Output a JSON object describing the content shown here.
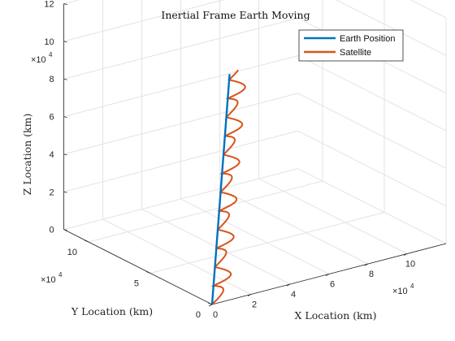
{
  "chart_data": {
    "type": "line",
    "title": "Inertial Frame Earth Moving",
    "xlabel": "X Location (km)",
    "ylabel": "Y Location (km)",
    "zlabel": "Z Location (km)",
    "x_ticks": [
      "0",
      "2",
      "4",
      "6",
      "8",
      "10"
    ],
    "y_ticks": [
      "0",
      "5",
      "10"
    ],
    "z_ticks": [
      "0",
      "2",
      "4",
      "6",
      "8",
      "10",
      "12"
    ],
    "x_exponent": "×10",
    "y_exponent": "×10",
    "z_exponent": "×10",
    "exponent_power": "4",
    "xlim": [
      0,
      120000
    ],
    "ylim": [
      0,
      120000
    ],
    "zlim": [
      0,
      120000
    ],
    "grid": true,
    "legend_position": "top-right",
    "series": [
      {
        "name": "Earth Position",
        "color": "#0072BD",
        "points": [
          [
            0,
            0,
            0
          ],
          [
            9000,
            0,
            120000
          ]
        ]
      },
      {
        "name": "Satellite",
        "color": "#D95319",
        "orbit": {
          "center_start": [
            0,
            0,
            0
          ],
          "center_end": [
            9000,
            0,
            120000
          ],
          "radius": 7000,
          "loops": 6.15
        }
      }
    ]
  }
}
